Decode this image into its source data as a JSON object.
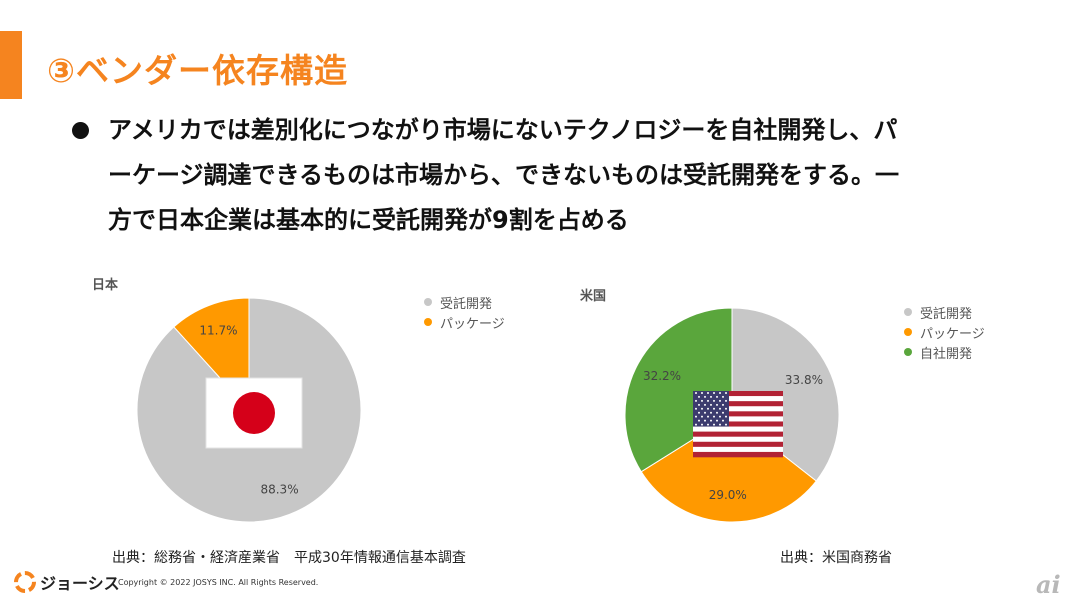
{
  "title": "③ベンダー依存構造",
  "bullet_lines": [
    "アメリカでは差別化につながり市場にないテクノロジーを自社開発し、パ",
    "ーケージ調達できるものは市場から、できないものは受託開発をする。一",
    "方で日本企業は基本的に受託開発が9割を占める"
  ],
  "colors": {
    "accent": "#f5841f",
    "gray": "#c7c7c7",
    "orange": "#ff9900",
    "green": "#5aa63c"
  },
  "chart_data": [
    {
      "type": "pie",
      "title": "日本",
      "categories": [
        "受託開発",
        "パッケージ"
      ],
      "values": [
        88.3,
        11.7
      ],
      "labels": [
        "88.3%",
        "11.7%"
      ],
      "colors": [
        "#c7c7c7",
        "#ff9900"
      ],
      "legend_position": "right",
      "image": "japan-flag"
    },
    {
      "type": "pie",
      "title": "米国",
      "categories": [
        "受託開発",
        "パッケージ",
        "自社開発"
      ],
      "values": [
        33.8,
        29.0,
        32.2
      ],
      "labels": [
        "33.8%",
        "29.0%",
        "32.2%"
      ],
      "colors": [
        "#c7c7c7",
        "#ff9900",
        "#5aa63c"
      ],
      "legend_position": "right",
      "image": "us-flag"
    }
  ],
  "sources": {
    "japan": "出典：総務省・経済産業省　平成30年情報通信基本調査",
    "us": "出典：米国商務省"
  },
  "footer": {
    "brand": "ジョーシス",
    "copyright": "Copyright © 2022 JOSYS INC. All Rights Reserved.",
    "badge": "ai"
  }
}
